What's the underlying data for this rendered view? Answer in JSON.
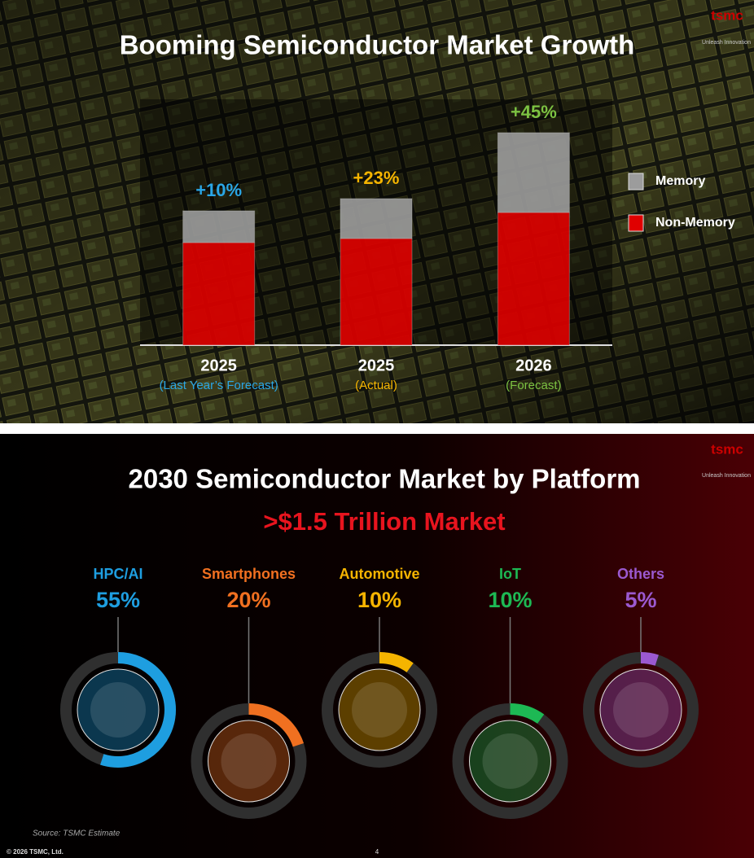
{
  "chart_data": [
    {
      "type": "bar",
      "stacked": true,
      "title": "Booming Semiconductor Market Growth",
      "categories": [
        "2025",
        "2025",
        "2026"
      ],
      "category_notes": [
        "(Last Year’s Forecast)",
        "(Actual)",
        "(Forecast)"
      ],
      "growth_labels": [
        "+10%",
        "+23%",
        "+45%"
      ],
      "label_colors": [
        "#2aa6e6",
        "#f5b400",
        "#7cc242"
      ],
      "series": [
        {
          "name": "Non-Memory",
          "color": "#e00000",
          "values": [
            126,
            131,
            163
          ]
        },
        {
          "name": "Memory",
          "color": "#9c9c9c",
          "values": [
            39,
            49,
            98
          ]
        }
      ],
      "ylim": [
        0,
        270
      ],
      "legend": "right"
    },
    {
      "type": "donut",
      "title": "2030 Semiconductor Market by Platform",
      "subtitle": ">$1.5 Trillion Market",
      "categories": [
        "HPC/AI",
        "Smartphones",
        "Automotive",
        "IoT",
        "Others"
      ],
      "values": [
        55,
        20,
        10,
        10,
        5
      ],
      "value_labels": [
        "55%",
        "20%",
        "10%",
        "10%",
        "5%"
      ],
      "colors": [
        "#1e9ee0",
        "#f07020",
        "#f5b400",
        "#1db954",
        "#9b59d0"
      ],
      "source": "Source: TSMC Estimate"
    }
  ],
  "logo": {
    "name": "tsmc",
    "tagline": "Unleash Innovation"
  },
  "footer": {
    "copyright": "© 2026 TSMC, Ltd.",
    "page": "4"
  }
}
